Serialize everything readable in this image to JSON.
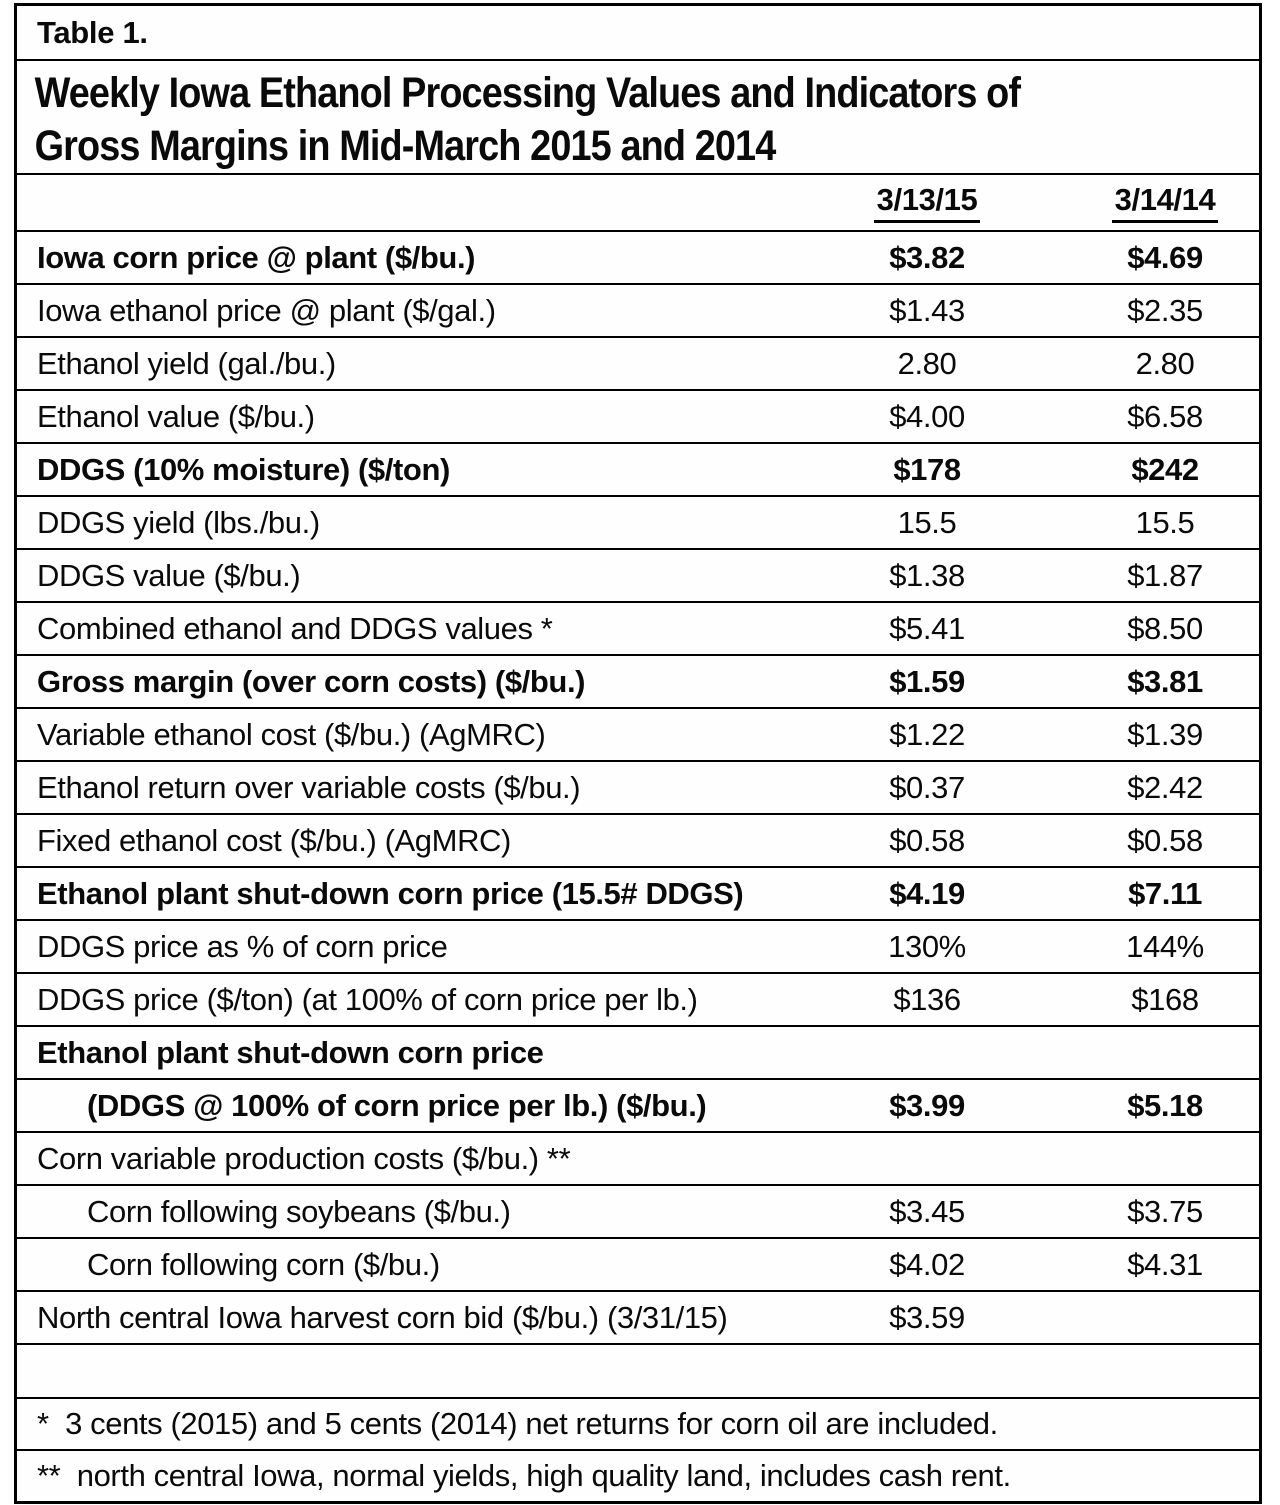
{
  "table": {
    "caption": "Table 1.",
    "title_lines": [
      "Weekly Iowa Ethanol Processing Values and Indicators of",
      "Gross Margins in Mid-March 2015 and 2014"
    ],
    "columns": [
      "3/13/15",
      "3/14/14"
    ],
    "rows": [
      {
        "label": "Iowa corn price @ plant ($/bu.)",
        "v1": "$3.82",
        "v2": "$4.69",
        "bold": true
      },
      {
        "label": "Iowa ethanol price @ plant ($/gal.)",
        "v1": "$1.43",
        "v2": "$2.35"
      },
      {
        "label": "Ethanol yield (gal./bu.)",
        "v1": "2.80",
        "v2": "2.80"
      },
      {
        "label": "Ethanol value ($/bu.)",
        "v1": "$4.00",
        "v2": "$6.58"
      },
      {
        "label": "DDGS (10% moisture) ($/ton)",
        "v1": "$178",
        "v2": "$242",
        "bold": true
      },
      {
        "label": "DDGS yield (lbs./bu.)",
        "v1": "15.5",
        "v2": "15.5"
      },
      {
        "label": "DDGS value ($/bu.)",
        "v1": "$1.38",
        "v2": "$1.87"
      },
      {
        "label": "Combined ethanol and DDGS values *",
        "v1": "$5.41",
        "v2": "$8.50"
      },
      {
        "label": "Gross margin (over corn costs) ($/bu.)",
        "v1": "$1.59",
        "v2": "$3.81",
        "bold": true
      },
      {
        "label": "Variable ethanol cost ($/bu.) (AgMRC)",
        "v1": "$1.22",
        "v2": "$1.39"
      },
      {
        "label": "Ethanol return over variable costs ($/bu.)",
        "v1": "$0.37",
        "v2": "$2.42"
      },
      {
        "label": "Fixed ethanol cost ($/bu.) (AgMRC)",
        "v1": "$0.58",
        "v2": "$0.58"
      },
      {
        "label": "Ethanol plant shut-down corn price (15.5# DDGS)",
        "v1": "$4.19",
        "v2": "$7.11",
        "bold": true
      },
      {
        "label": "DDGS price as % of corn price",
        "v1": "130%",
        "v2": "144%"
      },
      {
        "label": "DDGS price ($/ton) (at 100% of corn price per lb.)",
        "v1": "$136",
        "v2": "$168"
      },
      {
        "label": "Ethanol plant shut-down corn price",
        "v1": "",
        "v2": "",
        "bold": true
      },
      {
        "label": "(DDGS @ 100% of corn price per lb.) ($/bu.)",
        "v1": "$3.99",
        "v2": "$5.18",
        "bold": true,
        "indent": true
      },
      {
        "label": "Corn variable production costs ($/bu.) **",
        "v1": "",
        "v2": ""
      },
      {
        "label": "Corn following soybeans ($/bu.)",
        "v1": "$3.45",
        "v2": "$3.75",
        "indent": true
      },
      {
        "label": "Corn following corn ($/bu.)",
        "v1": "$4.02",
        "v2": "$4.31",
        "indent": true
      },
      {
        "label": "North central Iowa harvest corn bid ($/bu.) (3/31/15)",
        "v1": "$3.59",
        "v2": ""
      },
      {
        "label": "",
        "v1": "",
        "v2": "",
        "empty": true
      }
    ],
    "footnotes": [
      "*  3 cents (2015) and 5 cents (2014) net returns for corn oil are included.",
      "**  north central Iowa, normal yields, high quality land, includes cash rent."
    ]
  }
}
